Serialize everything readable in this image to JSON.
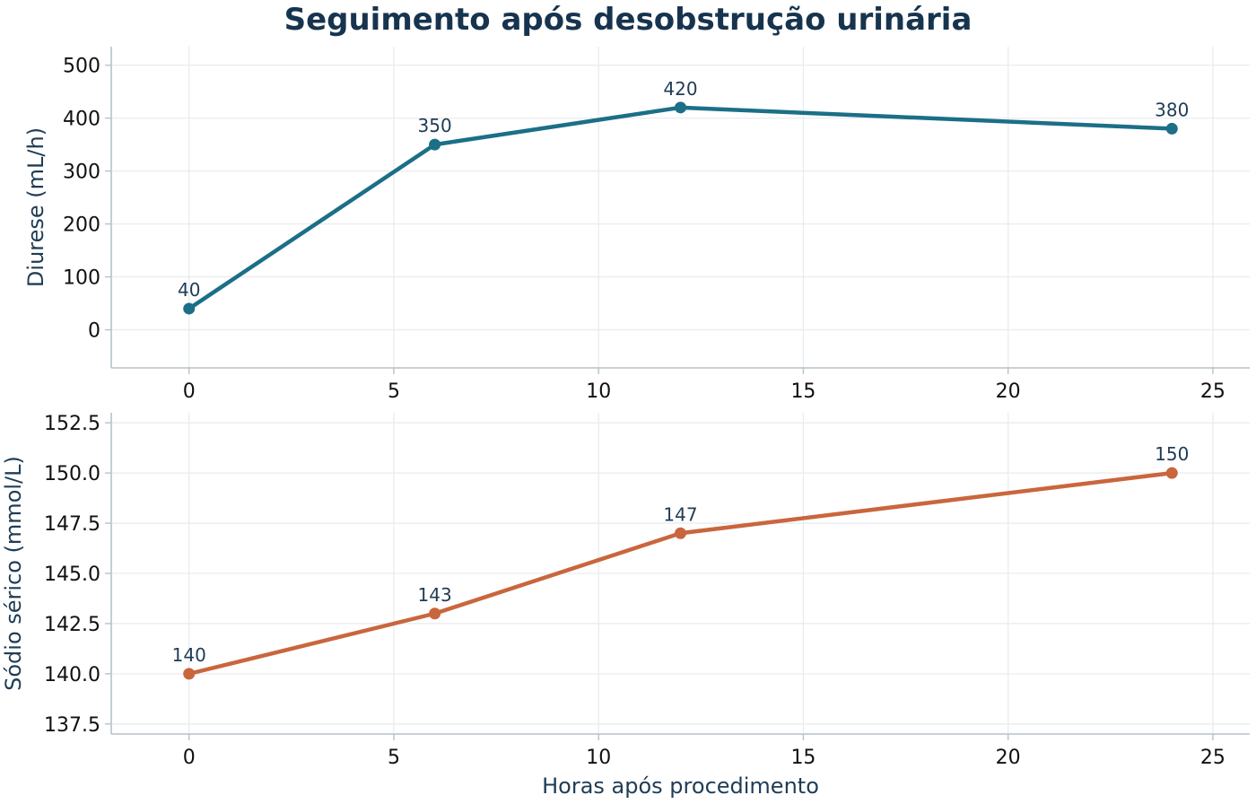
{
  "title": "Seguimento após desobstrução urinária",
  "colors": {
    "title": "#17344f",
    "diurese": "#1b6f87",
    "sodio": "#c9663d",
    "label": "#1f3c55"
  },
  "chart_data": [
    {
      "type": "line",
      "title": "Seguimento após desobstrução urinária",
      "xlabel": "",
      "ylabel": "Diurese (mL/h)",
      "x": [
        0,
        6,
        12,
        24
      ],
      "series": [
        {
          "values": [
            40,
            350,
            420,
            380
          ],
          "data_labels": [
            "40",
            "350",
            "420",
            "380"
          ]
        }
      ],
      "xlim": [
        -1.9,
        25.9
      ],
      "ylim": [
        -72,
        535
      ],
      "xticks": [
        0,
        5,
        10,
        15,
        20,
        25
      ],
      "yticks": [
        0,
        100,
        200,
        300,
        400,
        500
      ],
      "ytick_labels": [
        "0",
        "100",
        "200",
        "300",
        "400",
        "500"
      ],
      "grid": true
    },
    {
      "type": "line",
      "xlabel": "Horas após procedimento",
      "ylabel": "Sódio sérico (mmol/L)",
      "x": [
        0,
        6,
        12,
        24
      ],
      "series": [
        {
          "values": [
            140,
            143,
            147,
            150
          ],
          "data_labels": [
            "140",
            "143",
            "147",
            "150"
          ]
        }
      ],
      "xlim": [
        -1.9,
        25.9
      ],
      "ylim": [
        137.0,
        153.0
      ],
      "xticks": [
        0,
        5,
        10,
        15,
        20,
        25
      ],
      "yticks": [
        137.5,
        140.0,
        142.5,
        145.0,
        147.5,
        150.0,
        152.5
      ],
      "ytick_labels": [
        "137.5",
        "140.0",
        "142.5",
        "145.0",
        "147.5",
        "150.0",
        "152.5"
      ],
      "grid": true
    }
  ]
}
